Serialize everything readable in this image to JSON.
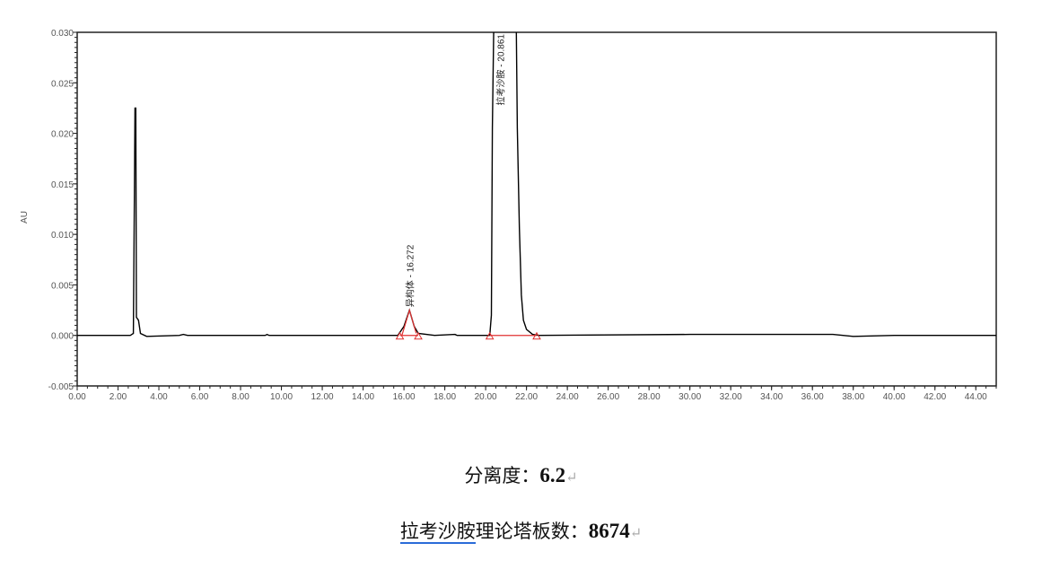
{
  "chart_data": {
    "type": "line",
    "title": "",
    "xlabel": "",
    "ylabel": "AU",
    "xlim": [
      0,
      45
    ],
    "ylim": [
      -0.005,
      0.03
    ],
    "x_ticks": [
      "0.00",
      "2.00",
      "4.00",
      "6.00",
      "8.00",
      "10.00",
      "12.00",
      "14.00",
      "16.00",
      "18.00",
      "20.00",
      "22.00",
      "24.00",
      "26.00",
      "28.00",
      "30.00",
      "32.00",
      "34.00",
      "36.00",
      "38.00",
      "40.00",
      "42.00",
      "44.00"
    ],
    "y_ticks": [
      "-0.005",
      "0.000",
      "0.005",
      "0.010",
      "0.015",
      "0.020",
      "0.025",
      "0.030"
    ],
    "grid": false,
    "series": [
      {
        "color": "#000000",
        "x": [
          0,
          2.6,
          2.75,
          2.8,
          2.83,
          2.87,
          2.9,
          3.0,
          3.1,
          3.4,
          5.0,
          5.2,
          5.4,
          9.2,
          9.3,
          9.4,
          15.7,
          16.0,
          16.27,
          16.5,
          16.7,
          17.5,
          18.5,
          18.6,
          20.2,
          20.28,
          20.33,
          20.4,
          20.5,
          21.5,
          21.55,
          21.65,
          21.75,
          21.85,
          22.0,
          22.3,
          22.6,
          30,
          37,
          38,
          40,
          45
        ],
        "y": [
          0,
          0,
          0.0002,
          0.0135,
          0.0225,
          0.0225,
          0.0018,
          0.0015,
          0.0002,
          -0.0001,
          0,
          0.0001,
          0,
          0,
          0.0001,
          0,
          0,
          0.0009,
          0.0025,
          0.0009,
          0.0002,
          0,
          0.0001,
          0,
          0,
          0.002,
          0.0205,
          0.031,
          0.031,
          0.031,
          0.0205,
          0.0106,
          0.004,
          0.0015,
          0.0006,
          0.0001,
          0,
          0.0001,
          0.0001,
          -0.0001,
          0,
          0
        ]
      }
    ],
    "peaks": [
      {
        "label": "异构体 - 16.272",
        "rt": 16.272,
        "start": 15.8,
        "end": 16.7
      },
      {
        "label": "拉考沙胺 - 20.861",
        "rt": 20.861,
        "start": 20.2,
        "end": 22.5
      }
    ],
    "integration_color": "#e03030"
  },
  "results": {
    "resolution_label": "分离度：",
    "resolution_value": "6.2",
    "plates_label_underlined": "拉考沙胺",
    "plates_label_rest": "理论塔板数：",
    "plates_value": "8674",
    "paragraph_mark": "↵"
  }
}
